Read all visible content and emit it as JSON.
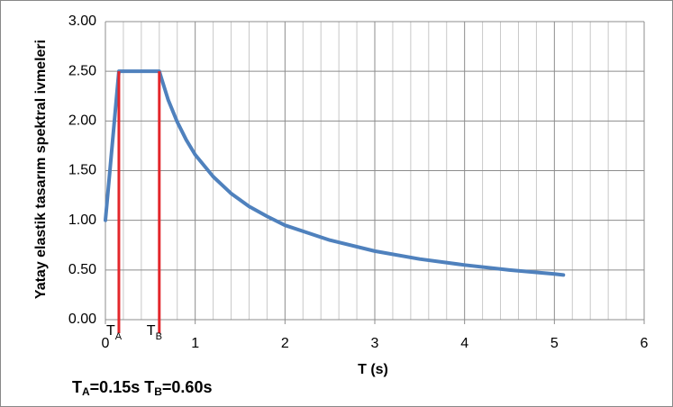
{
  "chart_data": {
    "type": "line",
    "x_label": "T (s)",
    "y_label": "Yatay elastik tasarım  spektral ivmeleri",
    "annotation_parts": [
      "T",
      "A",
      "=0.15s T",
      "B",
      "=0.60s"
    ],
    "markers": [
      {
        "label": "T",
        "sub": "A",
        "x": 0.15,
        "color": "#e3262b"
      },
      {
        "label": "T",
        "sub": "B",
        "x": 0.6,
        "color": "#e3262b"
      }
    ],
    "series": [
      {
        "color": "#4f81bd",
        "x": [
          0,
          0.15,
          0.6,
          0.7,
          0.8,
          0.9,
          1.0,
          1.2,
          1.4,
          1.6,
          1.8,
          2.0,
          2.5,
          3.0,
          3.5,
          4.0,
          4.5,
          5.0,
          5.1
        ],
        "values": [
          1.0,
          2.5,
          2.5,
          2.21,
          1.99,
          1.81,
          1.66,
          1.44,
          1.27,
          1.14,
          1.04,
          0.95,
          0.8,
          0.69,
          0.61,
          0.55,
          0.5,
          0.46,
          0.45
        ]
      }
    ],
    "xlim": [
      0,
      6
    ],
    "xticks": [
      0,
      1,
      2,
      3,
      4,
      5,
      6
    ],
    "ylim": [
      0,
      3
    ],
    "yticks": [
      {
        "value": 0,
        "label": "0.00"
      },
      {
        "value": 0.5,
        "label": "0.50"
      },
      {
        "value": 1,
        "label": "1.00"
      },
      {
        "value": 1.5,
        "label": "1.50"
      },
      {
        "value": 2,
        "label": "2.00"
      },
      {
        "value": 2.5,
        "label": "2.50"
      },
      {
        "value": 3,
        "label": "3.00"
      }
    ],
    "grid": true
  }
}
